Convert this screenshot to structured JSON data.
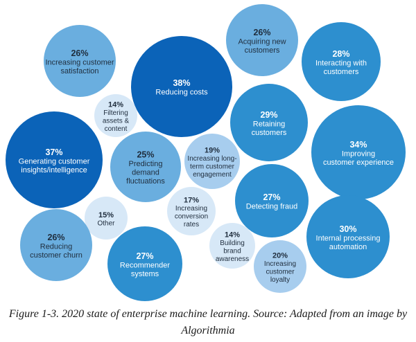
{
  "chart_data": {
    "type": "bubble",
    "unit": "%",
    "items": [
      {
        "label": "Acquiring new customers",
        "value": 26
      },
      {
        "label": "Increasing customer satisfaction",
        "value": 26
      },
      {
        "label": "Reducing costs",
        "value": 38
      },
      {
        "label": "Interacting with customers",
        "value": 28
      },
      {
        "label": "Filtering assets & content",
        "value": 14
      },
      {
        "label": "Retaining customers",
        "value": 29
      },
      {
        "label": "Generating customer insights/intelligence",
        "value": 37
      },
      {
        "label": "Improving customer experience",
        "value": 34
      },
      {
        "label": "Predicting demand fluctuations",
        "value": 25
      },
      {
        "label": "Increasing long-term customer engagement",
        "value": 19
      },
      {
        "label": "Detecting fraud",
        "value": 27
      },
      {
        "label": "Increasing conversion rates",
        "value": 17
      },
      {
        "label": "Other",
        "value": 15
      },
      {
        "label": "Internal processing automation",
        "value": 30
      },
      {
        "label": "Building brand awareness",
        "value": 14
      },
      {
        "label": "Reducing customer churn",
        "value": 26
      },
      {
        "label": "Recommender systems",
        "value": 27
      },
      {
        "label": "Increasing customer loyalty",
        "value": 20
      }
    ]
  },
  "caption": "Figure 1-3. 2020 state of enterprise machine learning. Source: Adapted from an image by Algorithmia"
}
